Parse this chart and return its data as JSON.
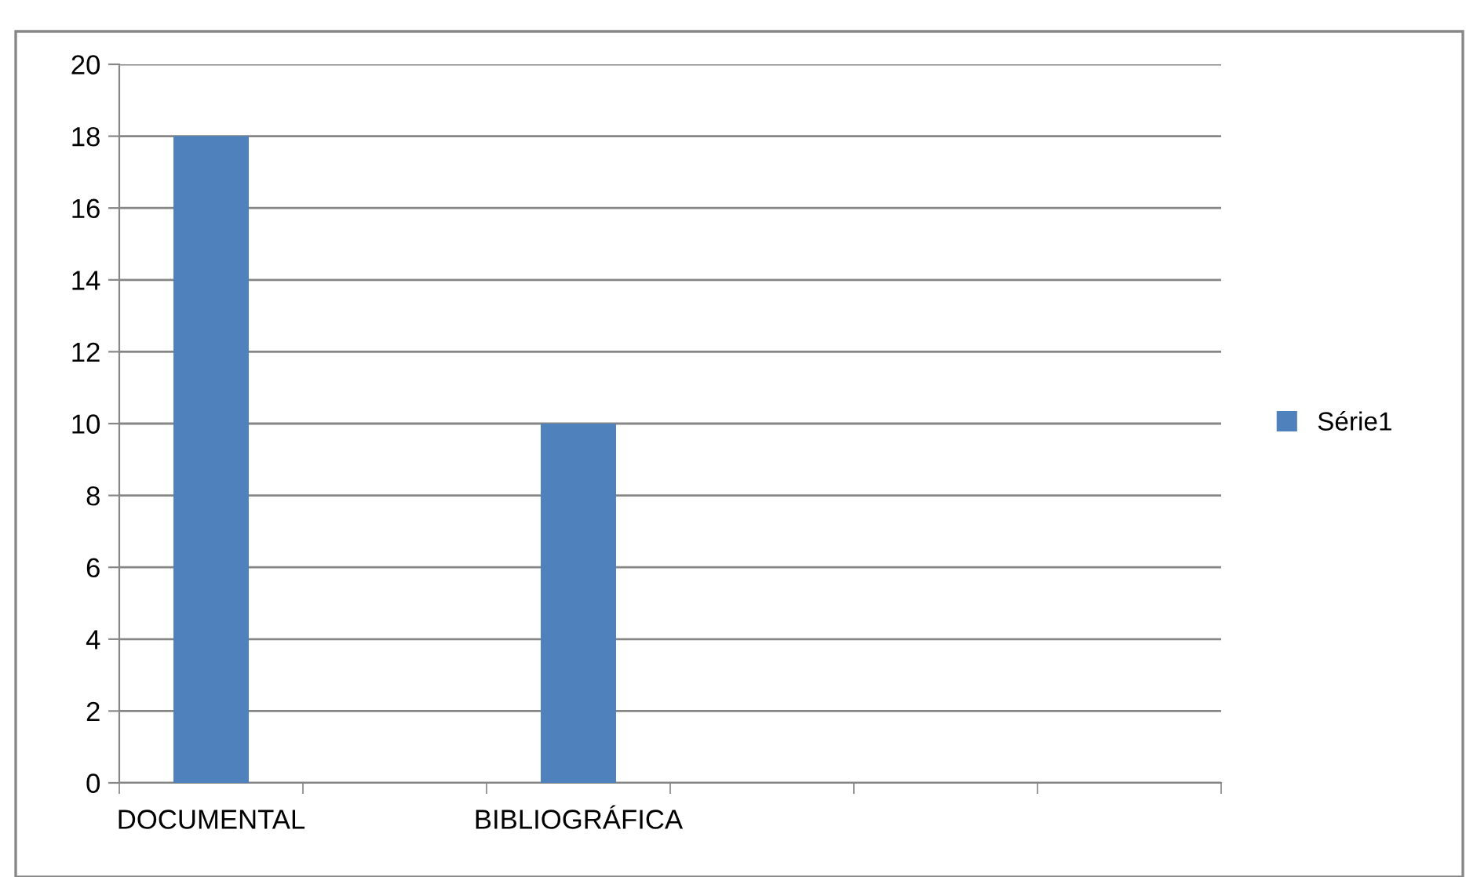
{
  "chart_data": {
    "type": "bar",
    "categories": [
      "DOCUMENTAL",
      null,
      "BIBLIOGRÁFICA",
      null,
      null,
      null
    ],
    "series": [
      {
        "name": "Série1",
        "color": "#4f81bd",
        "values": [
          18,
          null,
          10,
          null,
          null,
          null
        ]
      }
    ],
    "ylim": [
      0,
      20
    ],
    "yticks": [
      0,
      2,
      4,
      6,
      8,
      10,
      12,
      14,
      16,
      18,
      20
    ],
    "grid": "y",
    "legend": "right"
  }
}
